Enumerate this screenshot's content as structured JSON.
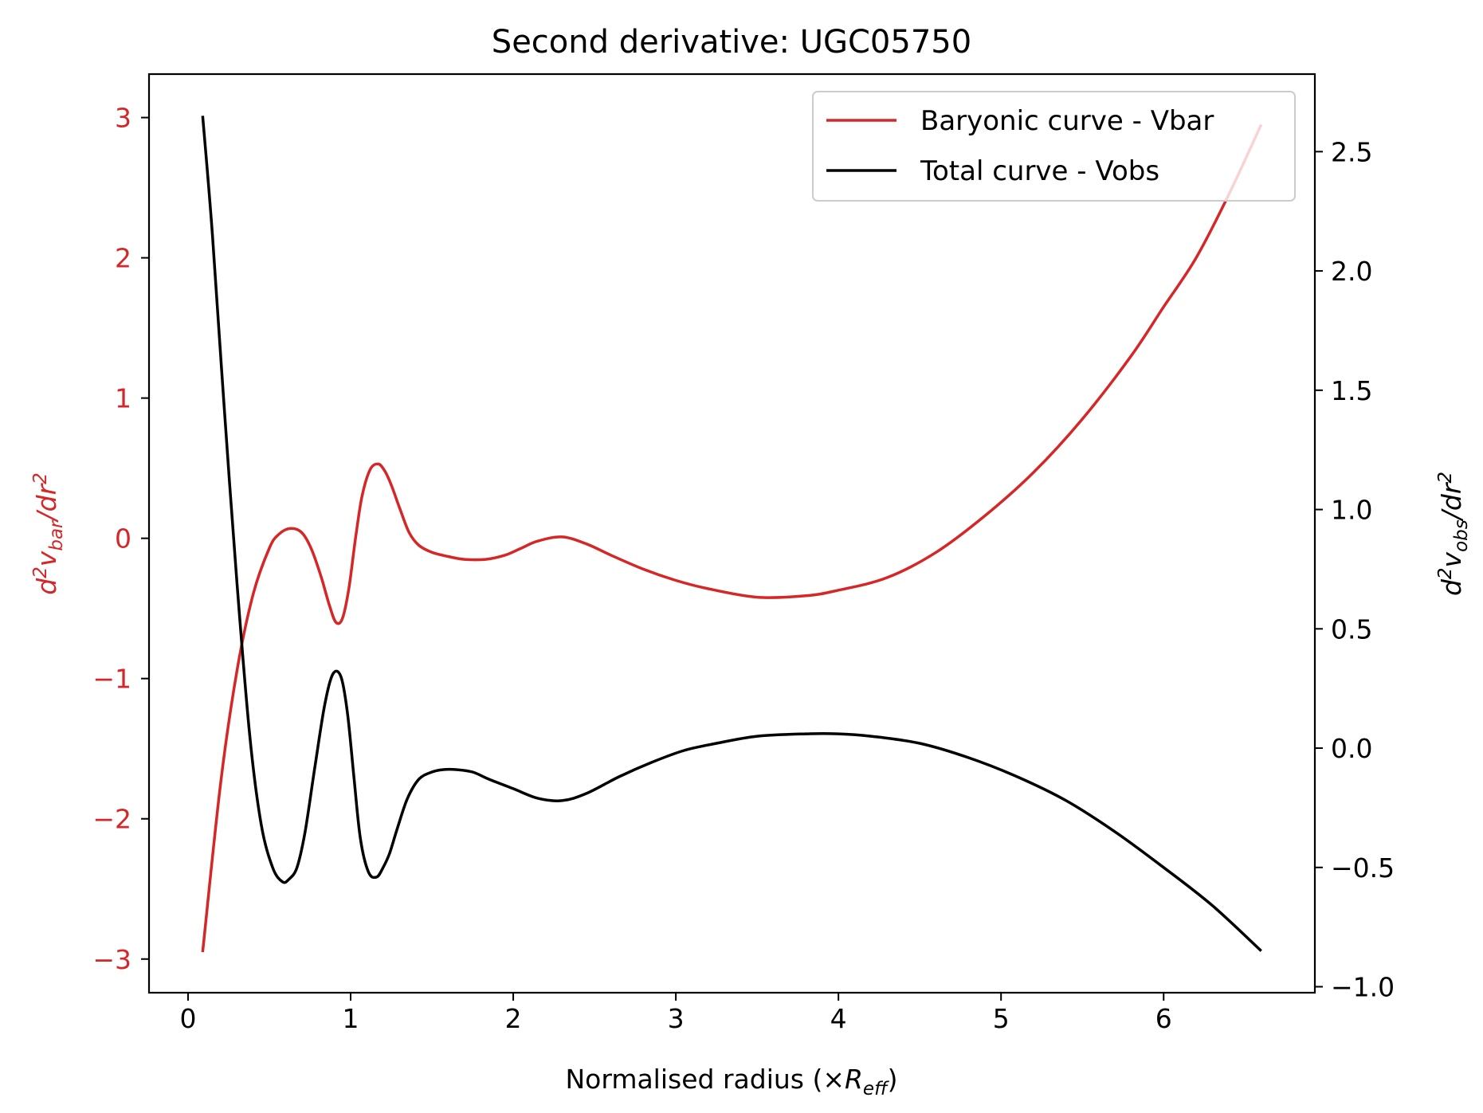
{
  "chart_data": {
    "type": "line",
    "title": "Second derivative: UGC05750",
    "xlabel": {
      "text": "Normalised radius (×",
      "var": "R",
      "sub": "eff",
      "suffix": ")"
    },
    "ylabel_left": {
      "d": "d",
      "sup1": "2",
      "v": "v",
      "sub": "bar",
      "slash": "/dr",
      "sup2": "2"
    },
    "ylabel_right": {
      "d": "d",
      "sup1": "2",
      "v": "v",
      "sub": "obs",
      "slash": "/dr",
      "sup2": "2"
    },
    "xlim": [
      -0.24,
      6.93
    ],
    "ylim_left": [
      -3.24,
      3.31
    ],
    "ylim_right": [
      -1.025,
      2.825
    ],
    "x_ticks": [
      0,
      1,
      2,
      3,
      4,
      5,
      6
    ],
    "x_tick_labels": [
      "0",
      "1",
      "2",
      "3",
      "4",
      "5",
      "6"
    ],
    "yl_ticks": [
      -3,
      -2,
      -1,
      0,
      1,
      2,
      3
    ],
    "yl_tick_labels": [
      "−3",
      "−2",
      "−1",
      "0",
      "1",
      "2",
      "3"
    ],
    "yr_ticks": [
      -1.0,
      -0.5,
      0.0,
      0.5,
      1.0,
      1.5,
      2.0,
      2.5
    ],
    "yr_tick_labels": [
      "−1.0",
      "−0.5",
      "0.0",
      "0.5",
      "1.0",
      "1.5",
      "2.0",
      "2.5"
    ],
    "legend_position": "upper right",
    "grid": false,
    "series": [
      {
        "name": "Baryonic curve - Vbar",
        "color": "#d62728",
        "axis": "left",
        "x": [
          0.09,
          0.2,
          0.3,
          0.4,
          0.5,
          0.56,
          0.63,
          0.7,
          0.76,
          0.82,
          0.87,
          0.91,
          0.95,
          0.99,
          1.03,
          1.07,
          1.12,
          1.17,
          1.21,
          1.25,
          1.3,
          1.36,
          1.42,
          1.5,
          1.6,
          1.7,
          1.83,
          1.95,
          2.05,
          2.15,
          2.3,
          2.45,
          2.6,
          2.8,
          3.0,
          3.2,
          3.5,
          3.8,
          4.0,
          4.3,
          4.6,
          4.9,
          5.2,
          5.5,
          5.8,
          6.0,
          6.2,
          6.4,
          6.6
        ],
        "y": [
          -2.95,
          -1.75,
          -0.95,
          -0.4,
          -0.07,
          0.03,
          0.07,
          0.04,
          -0.08,
          -0.28,
          -0.48,
          -0.6,
          -0.57,
          -0.35,
          0.0,
          0.3,
          0.49,
          0.53,
          0.48,
          0.38,
          0.22,
          0.04,
          -0.05,
          -0.1,
          -0.13,
          -0.15,
          -0.15,
          -0.12,
          -0.07,
          -0.02,
          0.01,
          -0.04,
          -0.12,
          -0.22,
          -0.3,
          -0.36,
          -0.42,
          -0.41,
          -0.37,
          -0.28,
          -0.1,
          0.16,
          0.47,
          0.85,
          1.3,
          1.65,
          2.0,
          2.45,
          2.95
        ]
      },
      {
        "name": "Total curve - Vobs",
        "color": "#000000",
        "axis": "right",
        "x": [
          0.09,
          0.15,
          0.22,
          0.3,
          0.38,
          0.45,
          0.52,
          0.58,
          0.62,
          0.67,
          0.72,
          0.78,
          0.84,
          0.89,
          0.94,
          0.98,
          1.02,
          1.06,
          1.11,
          1.16,
          1.2,
          1.24,
          1.29,
          1.35,
          1.42,
          1.5,
          1.57,
          1.65,
          1.75,
          1.85,
          2.0,
          2.15,
          2.3,
          2.45,
          2.65,
          2.85,
          3.05,
          3.25,
          3.5,
          3.8,
          4.0,
          4.2,
          4.5,
          4.8,
          5.1,
          5.4,
          5.7,
          6.0,
          6.3,
          6.6
        ],
        "y": [
          2.65,
          2.15,
          1.45,
          0.7,
          0.05,
          -0.32,
          -0.5,
          -0.56,
          -0.55,
          -0.5,
          -0.35,
          -0.08,
          0.18,
          0.31,
          0.3,
          0.15,
          -0.12,
          -0.38,
          -0.52,
          -0.54,
          -0.5,
          -0.44,
          -0.33,
          -0.21,
          -0.13,
          -0.1,
          -0.09,
          -0.09,
          -0.1,
          -0.13,
          -0.17,
          -0.21,
          -0.22,
          -0.19,
          -0.12,
          -0.06,
          -0.01,
          0.02,
          0.05,
          0.06,
          0.06,
          0.05,
          0.02,
          -0.04,
          -0.12,
          -0.22,
          -0.35,
          -0.5,
          -0.66,
          -0.85
        ]
      }
    ]
  }
}
